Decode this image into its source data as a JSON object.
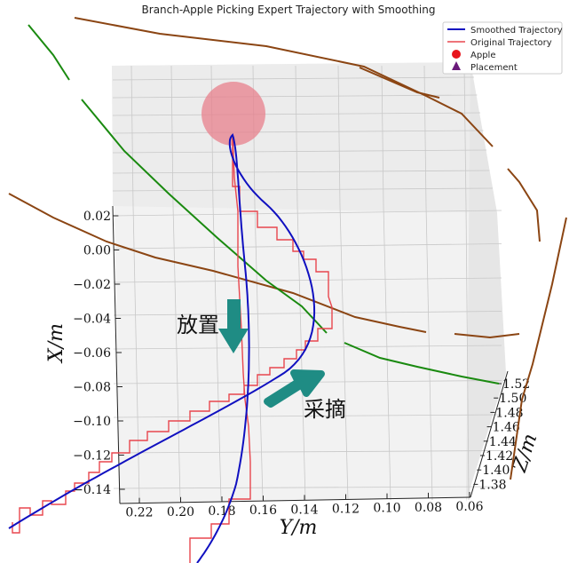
{
  "chart_data": {
    "type": "line",
    "projection": "3d",
    "title": "Branch-Apple Picking Expert Trajectory with Smoothing",
    "xlabel": "Y/m",
    "ylabel": "X/m",
    "zlabel": "Z/m",
    "x_ticks": [
      "0.22",
      "0.20",
      "0.18",
      "0.16",
      "0.14",
      "0.12",
      "0.10",
      "0.08",
      "0.06"
    ],
    "y_ticks": [
      "0.02",
      "0.00",
      "−0.02",
      "−0.04",
      "−0.06",
      "−0.08",
      "−0.10",
      "−0.12",
      "−0.14"
    ],
    "z_ticks": [
      "1.52",
      "1.50",
      "1.48",
      "1.46",
      "1.44",
      "1.42",
      "1.40",
      "1.38"
    ],
    "xlim": [
      0.23,
      0.06
    ],
    "ylim": [
      -0.15,
      0.03
    ],
    "zlim": [
      1.37,
      1.53
    ],
    "grid": true,
    "legend_position": "top-right",
    "legend": [
      {
        "label": "Smoothed Trajectory",
        "color": "#1010c0",
        "marker": "line"
      },
      {
        "label": "Original Trajectory",
        "color": "#e8464e",
        "marker": "line"
      },
      {
        "label": "Apple",
        "color": "#e8141c",
        "marker": "circle"
      },
      {
        "label": "Placement",
        "color": "#6a1a7a",
        "marker": "triangle"
      }
    ],
    "annotations": [
      {
        "text": "放置",
        "arrow_color": "#1f8c84",
        "direction": "down"
      },
      {
        "text": "采摘",
        "arrow_color": "#1f8c84",
        "direction": "up-right"
      }
    ],
    "colors": {
      "smoothed": "#1010c0",
      "original": "#e8464e",
      "apple": "#e8808c",
      "branch_brown": "#8b4513",
      "branch_green": "#1a8a10",
      "arrow": "#1f8c84"
    }
  }
}
